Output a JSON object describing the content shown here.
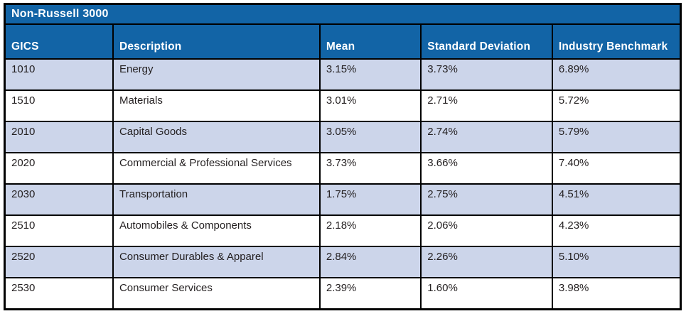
{
  "table": {
    "title": "Non-Russell 3000",
    "columns": {
      "gics": "GICS",
      "description": "Description",
      "mean": "Mean",
      "std_dev": "Standard Deviation",
      "benchmark": "Industry Benchmark"
    },
    "rows": [
      [
        "1010",
        "Energy",
        "3.15%",
        "3.73%",
        "6.89%"
      ],
      [
        "1510",
        "Materials",
        "3.01%",
        "2.71%",
        "5.72%"
      ],
      [
        "2010",
        "Capital Goods",
        "3.05%",
        "2.74%",
        "5.79%"
      ],
      [
        "2020",
        "Commercial & Professional Services",
        "3.73%",
        "3.66%",
        "7.40%"
      ],
      [
        "2030",
        "Transportation",
        "1.75%",
        "2.75%",
        "4.51%"
      ],
      [
        "2510",
        "Automobiles & Components",
        "2.18%",
        "2.06%",
        "4.23%"
      ],
      [
        "2520",
        "Consumer Durables & Apparel",
        "2.84%",
        "2.26%",
        "5.10%"
      ],
      [
        "2530",
        "Consumer Services",
        "2.39%",
        "1.60%",
        "3.98%"
      ]
    ]
  },
  "colors": {
    "header_background": "#1264a6",
    "alt_row_background": "#ccd5ea",
    "plain_row_background": "#ffffff",
    "border": "#000000",
    "header_text": "#ffffff",
    "body_text": "#231f20"
  }
}
